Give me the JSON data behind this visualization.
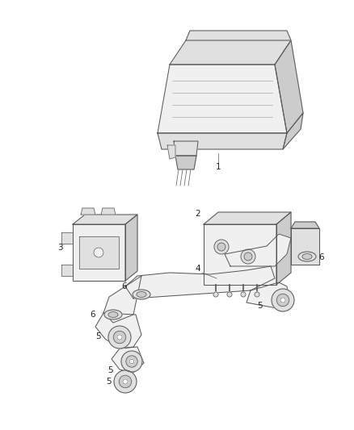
{
  "background_color": "#ffffff",
  "fig_width": 4.38,
  "fig_height": 5.33,
  "dpi": 100,
  "line_color": "#555555",
  "line_width": 0.7,
  "fill_light": "#f0f0f0",
  "fill_mid": "#e0e0e0",
  "fill_dark": "#cccccc",
  "label_fontsize": 7.5,
  "label_color": "#222222",
  "part1_label": "1",
  "part2_label": "2",
  "part3_label": "3",
  "part4_label": "4",
  "part5_label": "5",
  "part6_label": "6"
}
